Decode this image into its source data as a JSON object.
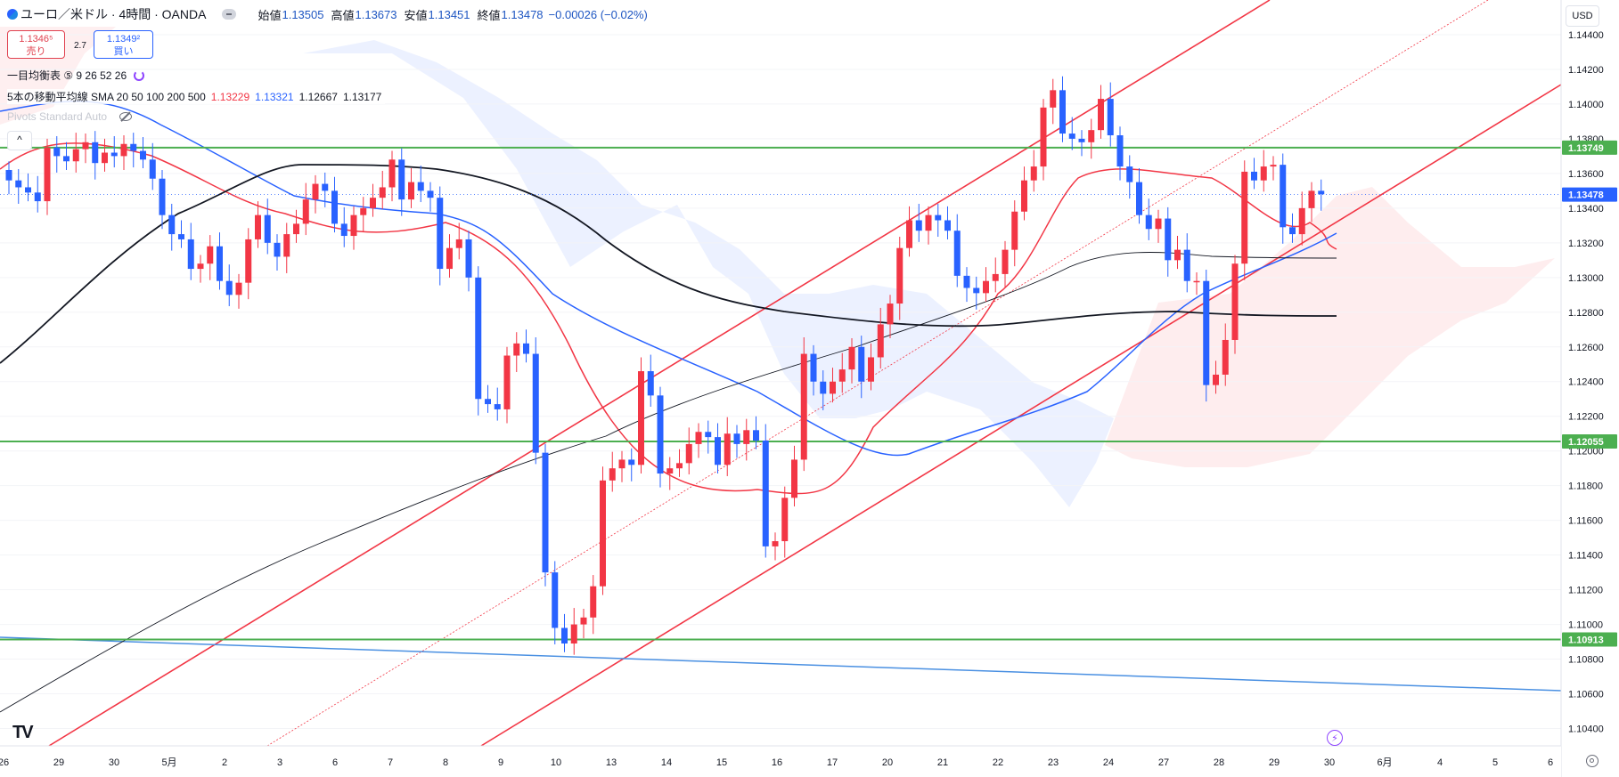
{
  "header": {
    "symbol": "ユーロ／米ドル · 4時間 · OANDA",
    "open_label": "始値",
    "open_value": "1.13505",
    "high_label": "高値",
    "high_value": "1.13673",
    "low_label": "安値",
    "low_value": "1.13451",
    "close_label": "終値",
    "close_value": "1.13478",
    "change": "−0.00026 (−0.02%)"
  },
  "trade": {
    "sell_price": "1.1346⁵",
    "sell_label": "売り",
    "spread": "2.7",
    "buy_price": "1.1349²",
    "buy_label": "買い"
  },
  "indicators": {
    "ichimoku": "一目均衡表 ⑤ 9 26 52 26",
    "ma_label": "5本の移動平均線 SMA 20 50 100 200 500",
    "ma_values": [
      "1.13229",
      "1.13321",
      "1.12667",
      "1.13177"
    ],
    "pivots": "Pivots Standard Auto"
  },
  "currency": "USD",
  "colors": {
    "up": "#f23645",
    "down": "#2962ff",
    "h_line": "#4caf50",
    "label_blue": "#2962ff",
    "label_green": "#4caf50"
  },
  "chart_data": {
    "type": "candlestick",
    "y_range": [
      1.103,
      1.146
    ],
    "y_ticks": [
      "1.14400",
      "1.14200",
      "1.14000",
      "1.13800",
      "1.13600",
      "1.13400",
      "1.13200",
      "1.13000",
      "1.12800",
      "1.12600",
      "1.12400",
      "1.12200",
      "1.12000",
      "1.11800",
      "1.11600",
      "1.11400",
      "1.11200",
      "1.11000",
      "1.10800",
      "1.10600",
      "1.10400"
    ],
    "x_labels": [
      "26",
      "29",
      "30",
      "5月",
      "2",
      "3",
      "6",
      "7",
      "8",
      "9",
      "10",
      "13",
      "14",
      "15",
      "16",
      "17",
      "20",
      "21",
      "22",
      "23",
      "24",
      "27",
      "28",
      "29",
      "30",
      "6月",
      "4",
      "5",
      "6"
    ],
    "price_labels": [
      {
        "value": "1.13749",
        "color": "green"
      },
      {
        "value": "1.13478",
        "color": "blue"
      },
      {
        "value": "1.12055",
        "color": "green"
      },
      {
        "value": "1.10913",
        "color": "green"
      }
    ],
    "horizontal_lines": [
      1.13749,
      1.12055,
      1.10913
    ],
    "last_price": 1.13478,
    "closes": [
      1.1356,
      1.1352,
      1.1349,
      1.1344,
      1.1375,
      1.137,
      1.1367,
      1.1374,
      1.1378,
      1.1366,
      1.1372,
      1.137,
      1.1377,
      1.1373,
      1.1368,
      1.1357,
      1.1336,
      1.1325,
      1.1322,
      1.1305,
      1.1308,
      1.1318,
      1.1298,
      1.129,
      1.1297,
      1.1322,
      1.1336,
      1.132,
      1.1312,
      1.1325,
      1.1331,
      1.1345,
      1.1354,
      1.135,
      1.1331,
      1.1324,
      1.1336,
      1.134,
      1.1346,
      1.1352,
      1.1368,
      1.1345,
      1.1355,
      1.135,
      1.1346,
      1.1305,
      1.1317,
      1.1322,
      1.13,
      1.123,
      1.1227,
      1.1224,
      1.1255,
      1.1262,
      1.1256,
      1.1199,
      1.113,
      1.1098,
      1.1089,
      1.11,
      1.1104,
      1.1122,
      1.1183,
      1.119,
      1.1195,
      1.1192,
      1.1246,
      1.1232,
      1.1187,
      1.119,
      1.1193,
      1.1204,
      1.1211,
      1.1208,
      1.1192,
      1.121,
      1.1204,
      1.1212,
      1.1206,
      1.1145,
      1.1148,
      1.1173,
      1.1195,
      1.1256,
      1.124,
      1.1233,
      1.124,
      1.1247,
      1.126,
      1.124,
      1.1254,
      1.1273,
      1.1285,
      1.1317,
      1.1333,
      1.1327,
      1.1336,
      1.1333,
      1.1327,
      1.1301,
      1.1294,
      1.1291,
      1.1298,
      1.1302,
      1.1316,
      1.1338,
      1.1356,
      1.1364,
      1.1398,
      1.1408,
      1.1383,
      1.138,
      1.1378,
      1.1385,
      1.1403,
      1.1382,
      1.1364,
      1.1355,
      1.1336,
      1.1328,
      1.1334,
      1.131,
      1.1316,
      1.1298,
      1.1298,
      1.1238,
      1.1244,
      1.1264,
      1.1308,
      1.1361,
      1.1356,
      1.1364,
      1.1365,
      1.1329,
      1.1325,
      1.134,
      1.135,
      1.1348
    ]
  }
}
